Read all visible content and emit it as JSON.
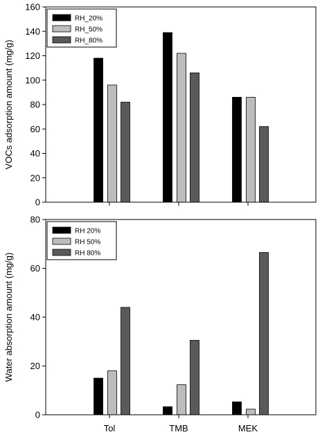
{
  "chart_data": [
    {
      "type": "bar",
      "categories": [
        "Tol",
        "TMB",
        "MEK"
      ],
      "series": [
        {
          "name": "RH_20%",
          "values": [
            118,
            139,
            86
          ],
          "color": "#000000"
        },
        {
          "name": "RH_50%",
          "values": [
            96,
            122,
            86
          ],
          "color": "#bdbdbd"
        },
        {
          "name": "RH_80%",
          "values": [
            82,
            106,
            62
          ],
          "color": "#5a5a5a"
        }
      ],
      "xlabel": "",
      "ylabel": "VOCs adsorption amount (mg/g)",
      "ylim": [
        0,
        160
      ],
      "yticks": [
        "0",
        "20",
        "40",
        "60",
        "80",
        "100",
        "120",
        "140",
        "160"
      ],
      "show_xticklabels": false,
      "grid": false,
      "legend": "top-left"
    },
    {
      "type": "bar",
      "categories": [
        "Tol",
        "TMB",
        "MEK"
      ],
      "series": [
        {
          "name": "RH 20%",
          "values": [
            15,
            3.3,
            5.3
          ],
          "color": "#000000"
        },
        {
          "name": "RH 50%",
          "values": [
            18,
            12.3,
            2.3
          ],
          "color": "#bdbdbd"
        },
        {
          "name": "RH 80%",
          "values": [
            44,
            30.5,
            66.5
          ],
          "color": "#5a5a5a"
        }
      ],
      "xlabel": "",
      "ylabel": "Water absorption amount (mg/g)",
      "ylim": [
        0,
        80
      ],
      "yticks": [
        "0",
        "20",
        "40",
        "60",
        "80"
      ],
      "show_xticklabels": true,
      "grid": false,
      "legend": "top-left"
    }
  ]
}
